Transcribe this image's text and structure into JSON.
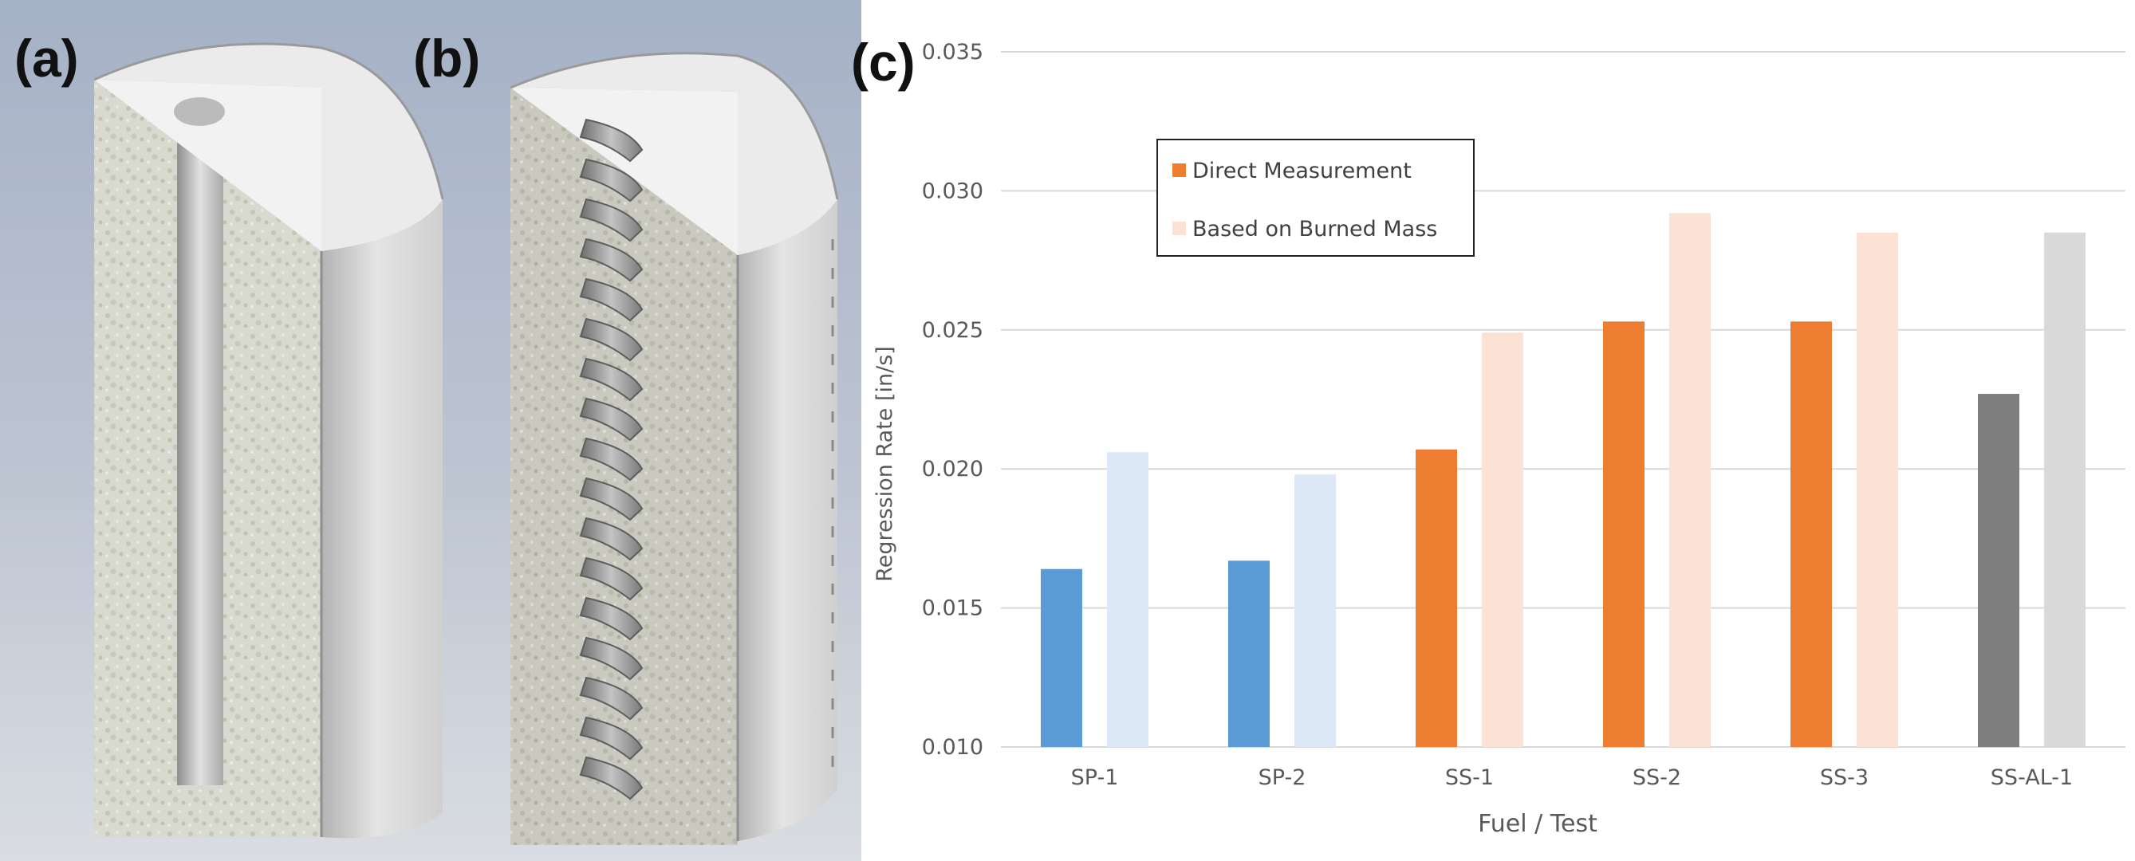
{
  "panels": {
    "a_label": "(a)",
    "b_label": "(b)",
    "c_label": "(c)"
  },
  "chart_data": {
    "type": "bar",
    "xlabel": "Fuel / Test",
    "ylabel": "Regression Rate [in/s]",
    "ylim": [
      0.01,
      0.035
    ],
    "yticks": [
      "0.010",
      "0.015",
      "0.020",
      "0.025",
      "0.030",
      "0.035"
    ],
    "grid": true,
    "legend_placement": "top-left",
    "categories": [
      "SP-1",
      "SP-2",
      "SS-1",
      "SS-2",
      "SS-3",
      "SS-AL-1"
    ],
    "series": [
      {
        "name": "Direct Measurement",
        "values": [
          0.0164,
          0.0167,
          0.0207,
          0.0253,
          0.0253,
          0.0227
        ],
        "colors": [
          "#5b9bd5",
          "#5b9bd5",
          "#ed7d31",
          "#ed7d31",
          "#ed7d31",
          "#7f7f7f"
        ],
        "legend_color": "#ed7d31"
      },
      {
        "name": "Based on Burned Mass",
        "values": [
          0.0206,
          0.0198,
          0.0249,
          0.0292,
          0.0285,
          0.0285
        ],
        "colors": [
          "#dce8f6",
          "#dce8f6",
          "#fbe2d5",
          "#fbe2d5",
          "#fbe2d5",
          "#d9d9d9"
        ],
        "legend_color": "#fbe2d5"
      }
    ]
  }
}
